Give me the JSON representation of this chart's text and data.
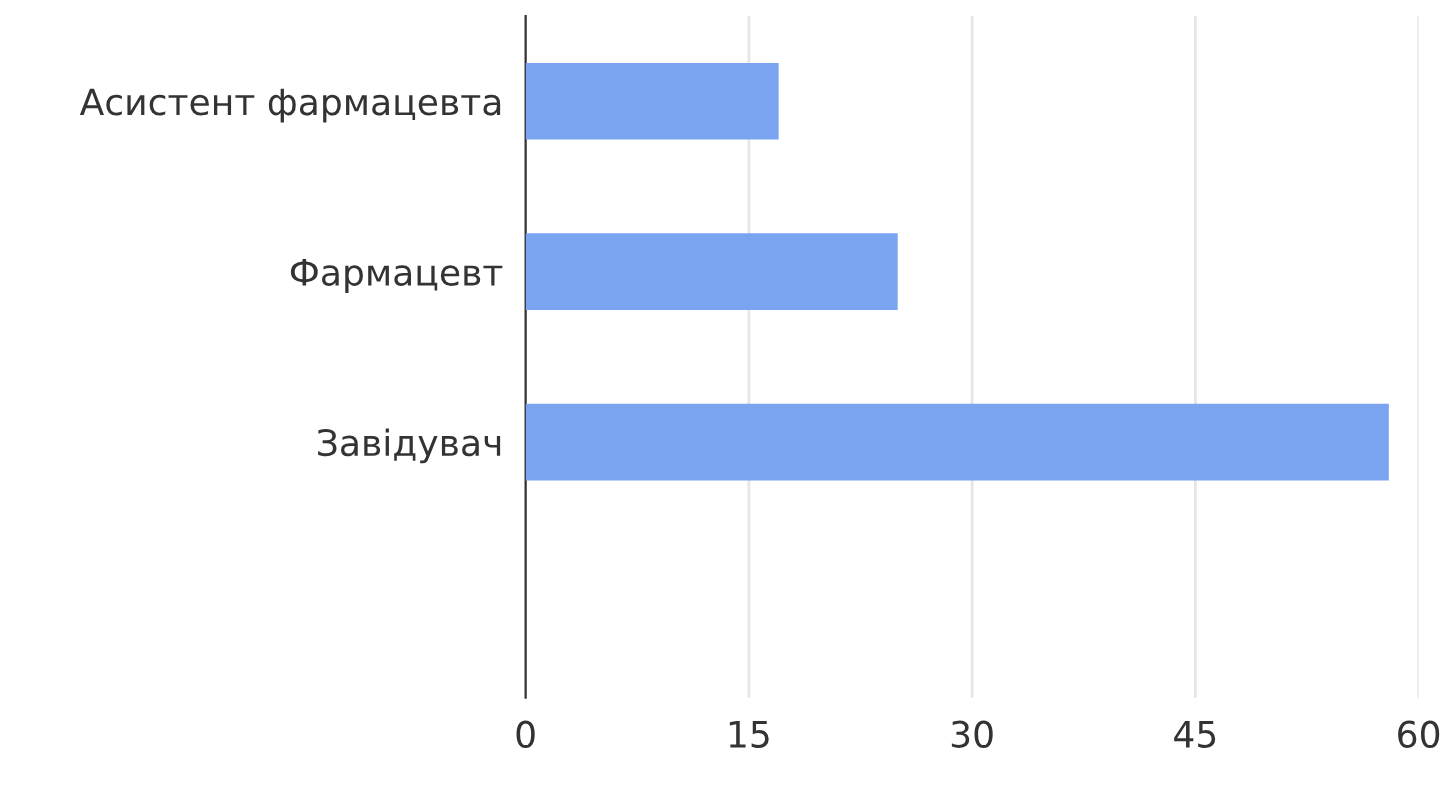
{
  "chart_data": {
    "type": "bar",
    "orientation": "horizontal",
    "categories": [
      "Асистент фармацевта",
      "Фармацевт",
      "Завідувач",
      null
    ],
    "values": [
      17,
      25,
      58,
      null
    ],
    "color": "#7ba4f0",
    "xlim": [
      0,
      60
    ],
    "xticks": [
      0,
      15,
      30,
      45,
      60
    ],
    "grid": "x"
  }
}
